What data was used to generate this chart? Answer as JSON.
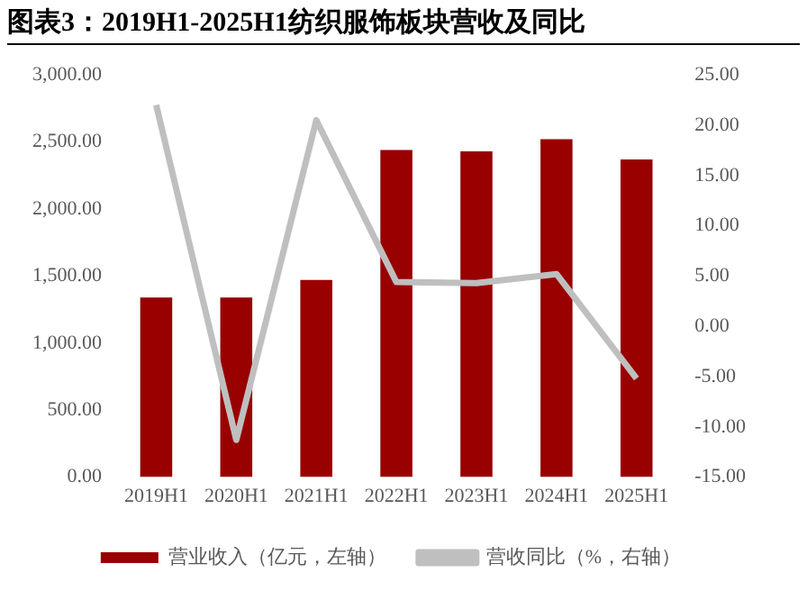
{
  "chart_data": {
    "type": "bar",
    "title": "图表3：2019H1-2025H1纺织服饰板块营收及同比",
    "categories": [
      "2019H1",
      "2020H1",
      "2021H1",
      "2022H1",
      "2023H1",
      "2024H1",
      "2025H1"
    ],
    "series": [
      {
        "name": "营业收入（亿元，左轴）",
        "color": "#990000",
        "values": [
          1340,
          1340,
          1470,
          2440,
          2430,
          2520,
          2370
        ]
      },
      {
        "name": "营收同比（%，右轴）",
        "type": "line",
        "axis": "y2",
        "color": "#bfbfbf",
        "values": [
          22.0,
          -11.3,
          20.5,
          4.4,
          4.3,
          5.2,
          -5.2
        ]
      }
    ],
    "ylim": [
      0,
      3000
    ],
    "yticks": [
      {
        "value": 0,
        "label": "0.00"
      },
      {
        "value": 500,
        "label": "500.00"
      },
      {
        "value": 1000,
        "label": "1,000.00"
      },
      {
        "value": 1500,
        "label": "1,500.00"
      },
      {
        "value": 2000,
        "label": "2,000.00"
      },
      {
        "value": 2500,
        "label": "2,500.00"
      },
      {
        "value": 3000,
        "label": "3,000.00"
      }
    ],
    "y2lim": [
      -15,
      25
    ],
    "y2ticks": [
      {
        "value": -15,
        "label": "-15.00"
      },
      {
        "value": -10,
        "label": "-10.00"
      },
      {
        "value": -5,
        "label": "-5.00"
      },
      {
        "value": 0,
        "label": "0.00"
      },
      {
        "value": 5,
        "label": "5.00"
      },
      {
        "value": 10,
        "label": "10.00"
      },
      {
        "value": 15,
        "label": "15.00"
      },
      {
        "value": 20,
        "label": "20.00"
      },
      {
        "value": 25,
        "label": "25.00"
      }
    ],
    "grid": false,
    "legend": "bottom",
    "marker": "none",
    "line_style": "solid"
  }
}
